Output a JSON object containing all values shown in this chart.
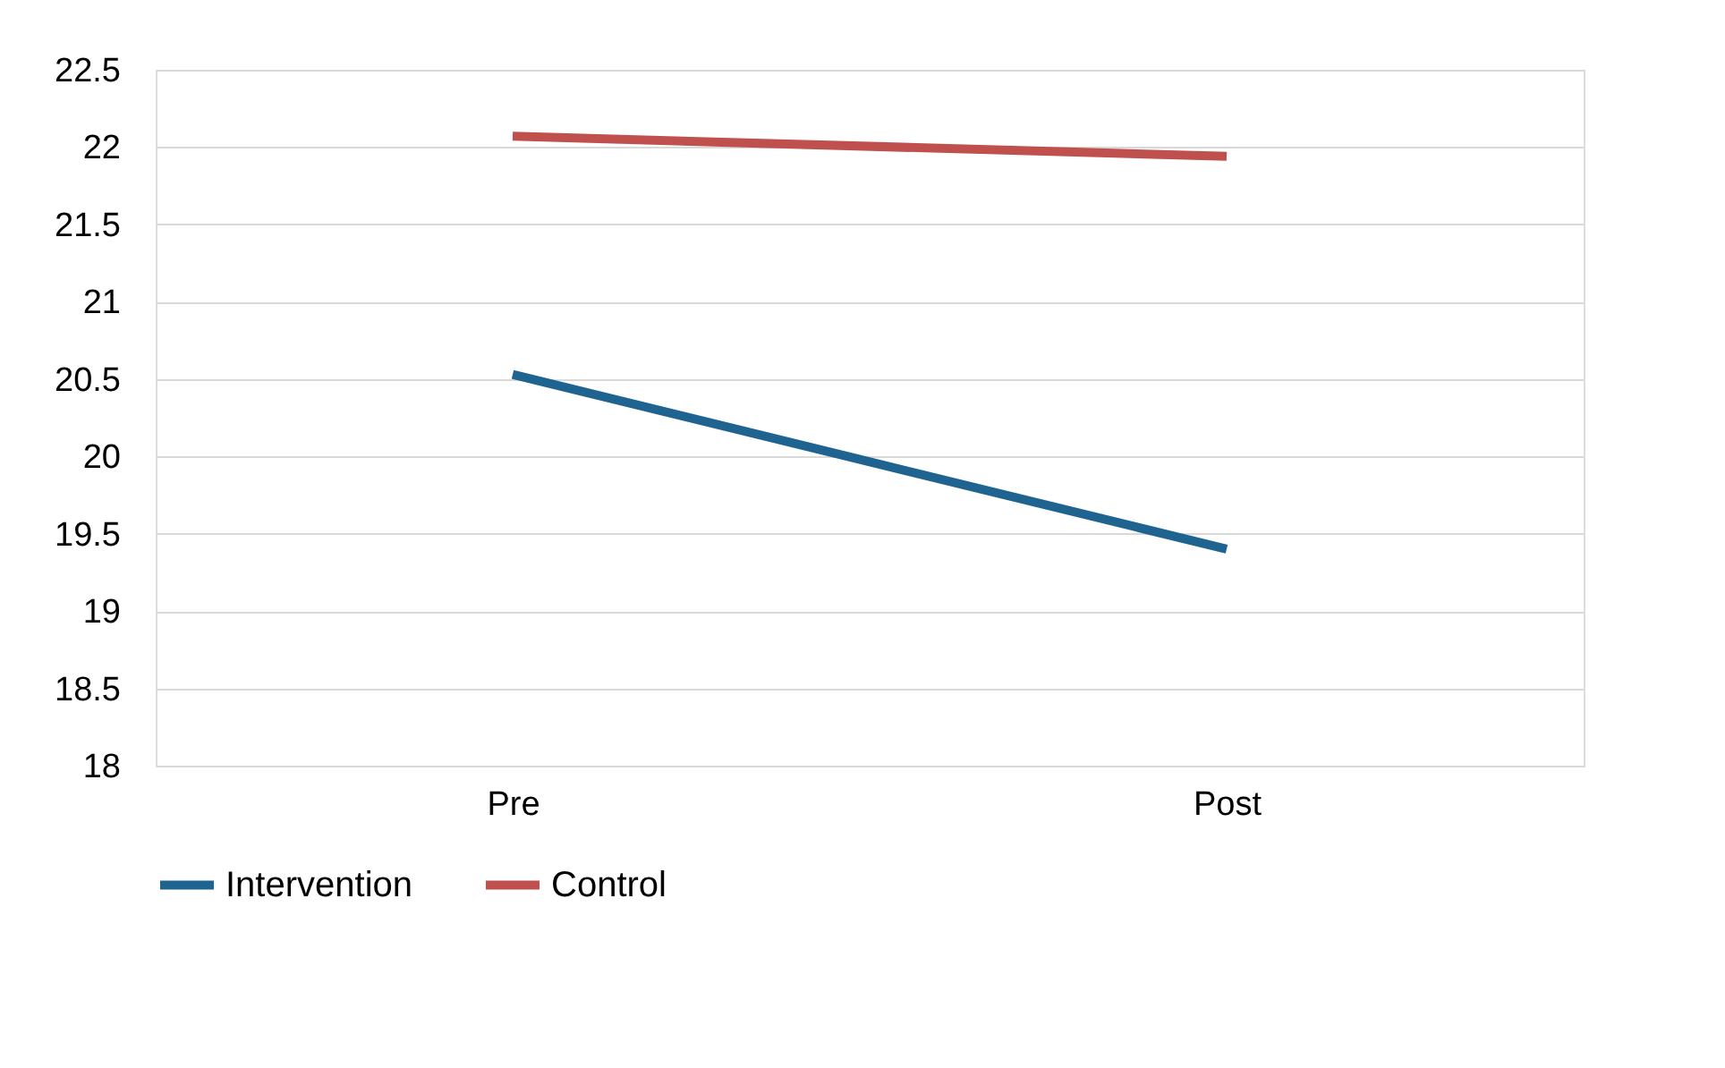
{
  "chart_data": {
    "type": "line",
    "categories": [
      "Pre",
      "Post"
    ],
    "series": [
      {
        "name": "Intervention",
        "color": "#1f6391",
        "values": [
          20.53,
          19.4
        ]
      },
      {
        "name": "Control",
        "color": "#c0504d",
        "values": [
          22.07,
          21.94
        ]
      }
    ],
    "ylim": [
      18,
      22.5
    ],
    "yticks": [
      18,
      18.5,
      19,
      19.5,
      20,
      20.5,
      21,
      21.5,
      22,
      22.5
    ],
    "grid": "y",
    "legend": "bottom",
    "marker": "none",
    "line_style": "solid"
  }
}
